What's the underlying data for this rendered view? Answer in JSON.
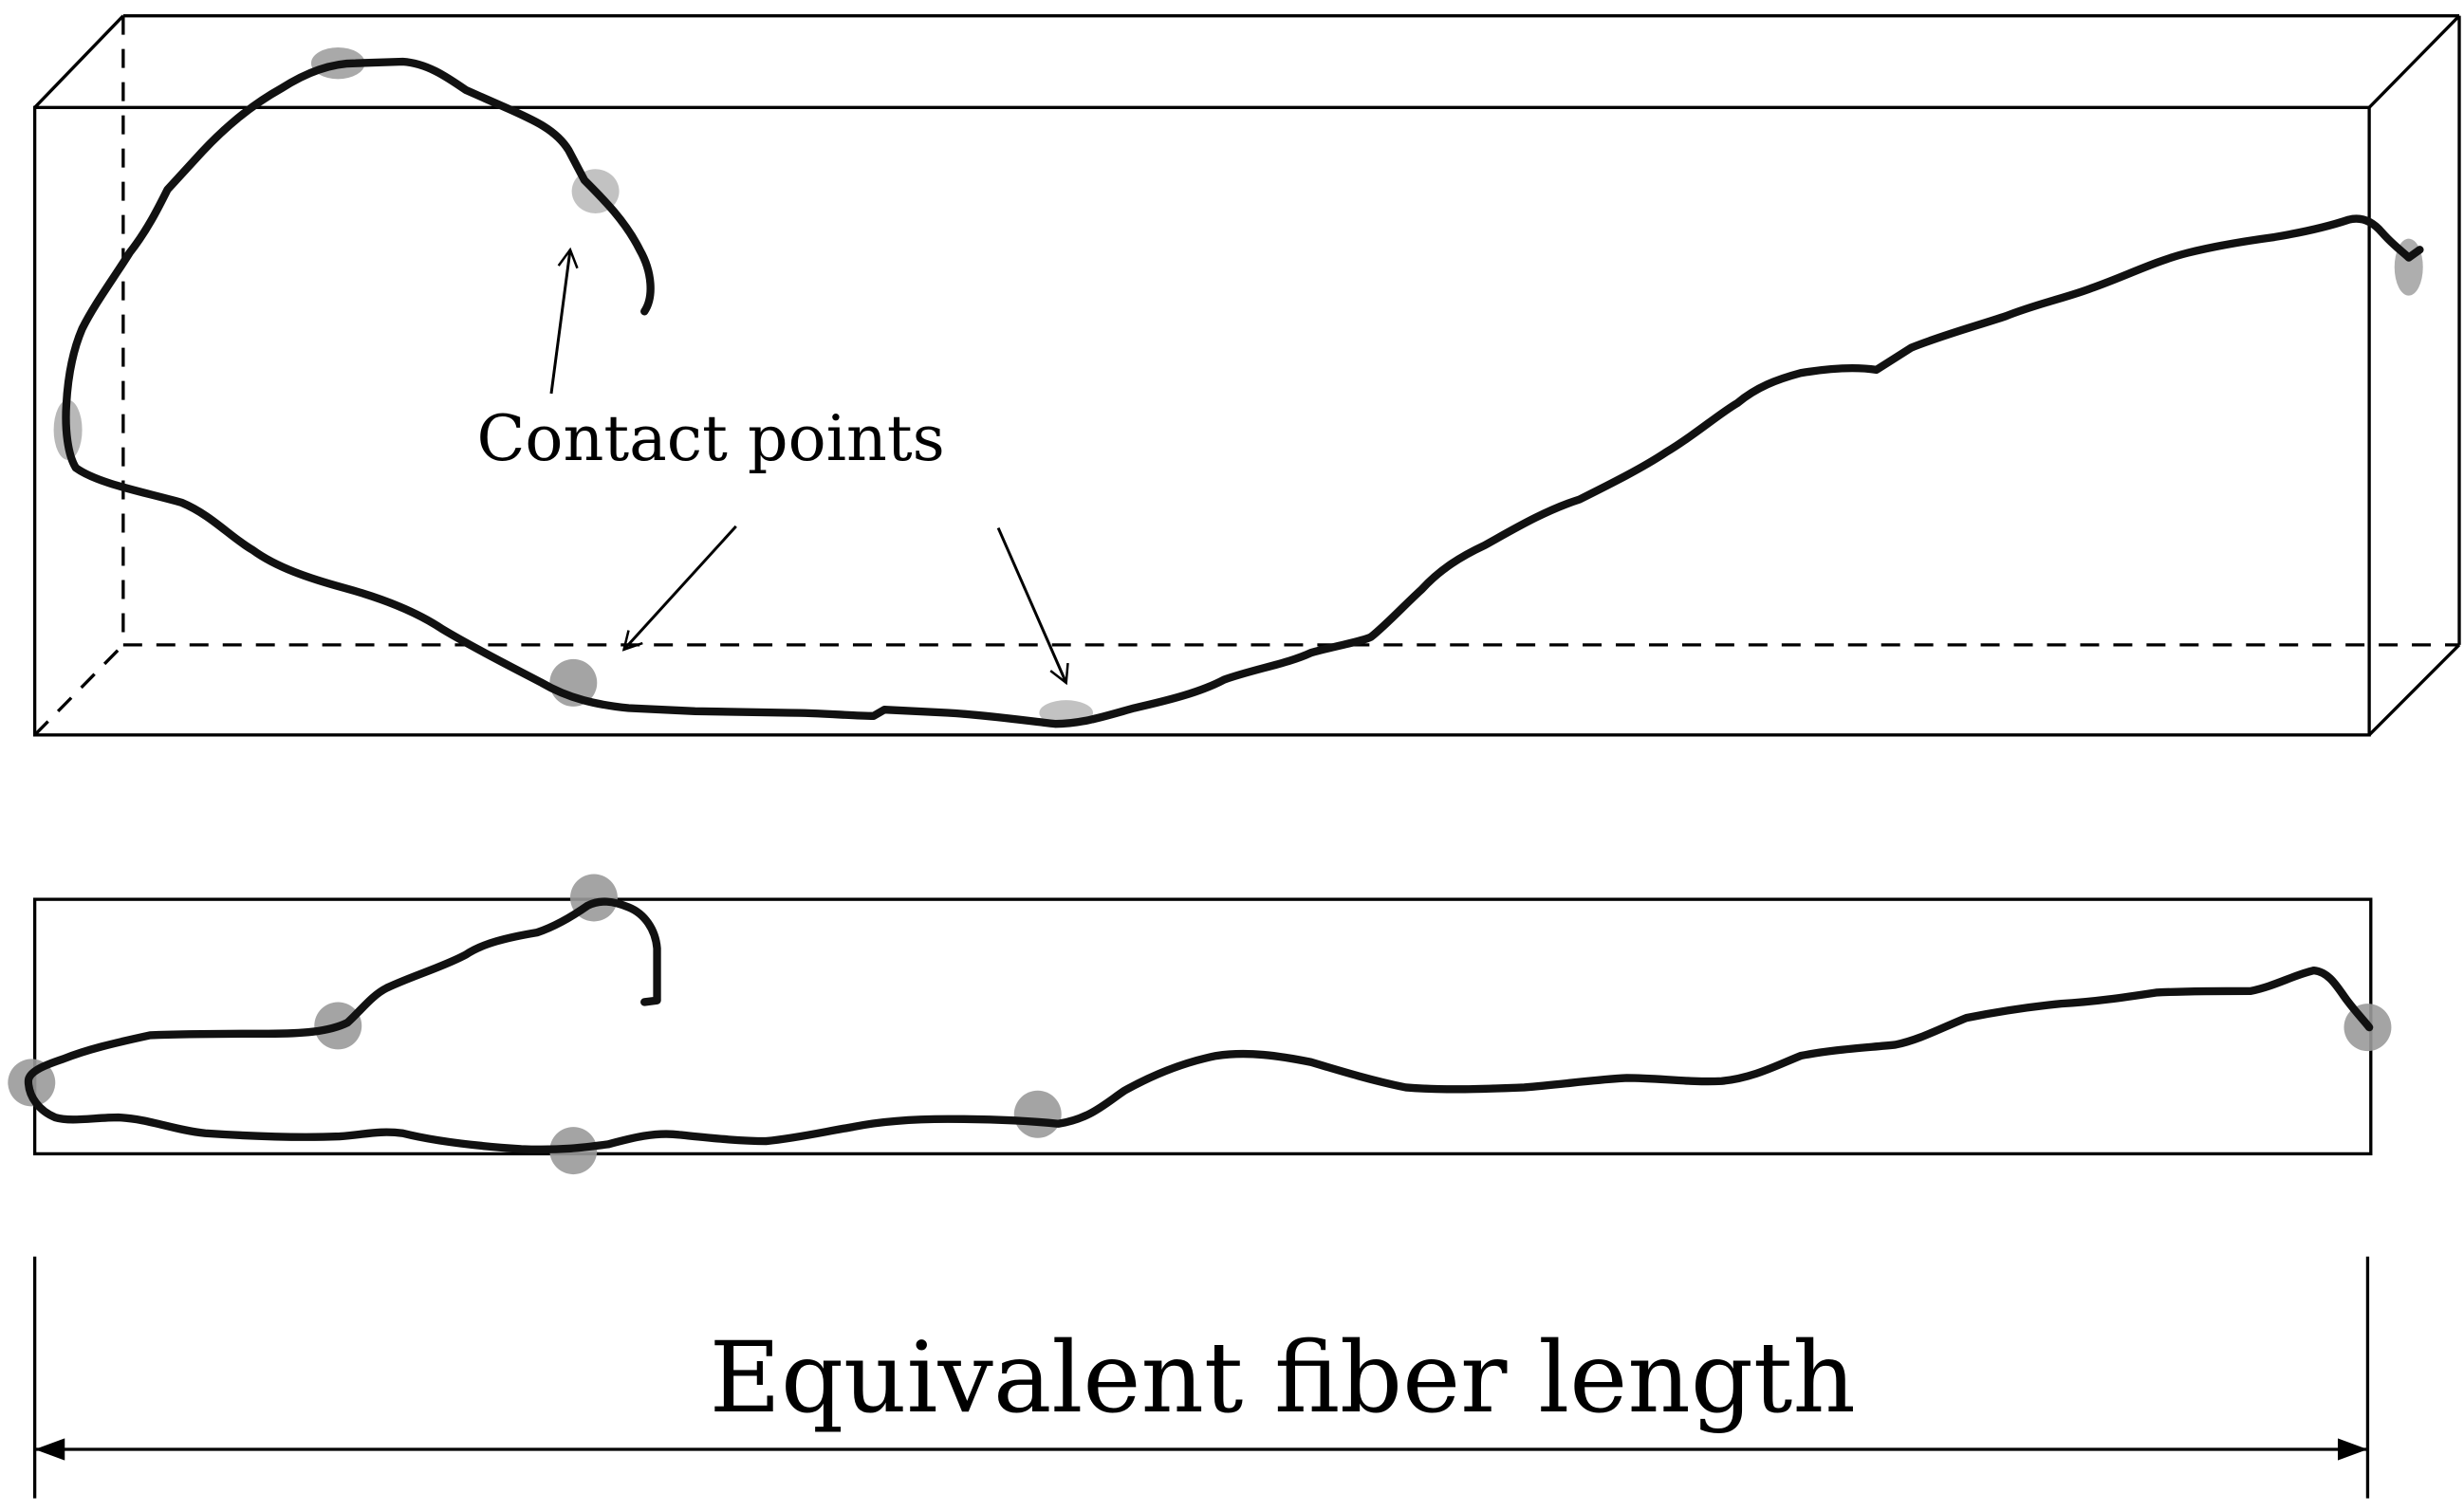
{
  "labels": {
    "contact_points": "Contact points",
    "equivalent_fiber_length": "Equivalent fiber length"
  },
  "colors": {
    "line": "#000000",
    "fiber": "#111111",
    "contact_point": "#9a9a9a",
    "background": "#ffffff"
  }
}
